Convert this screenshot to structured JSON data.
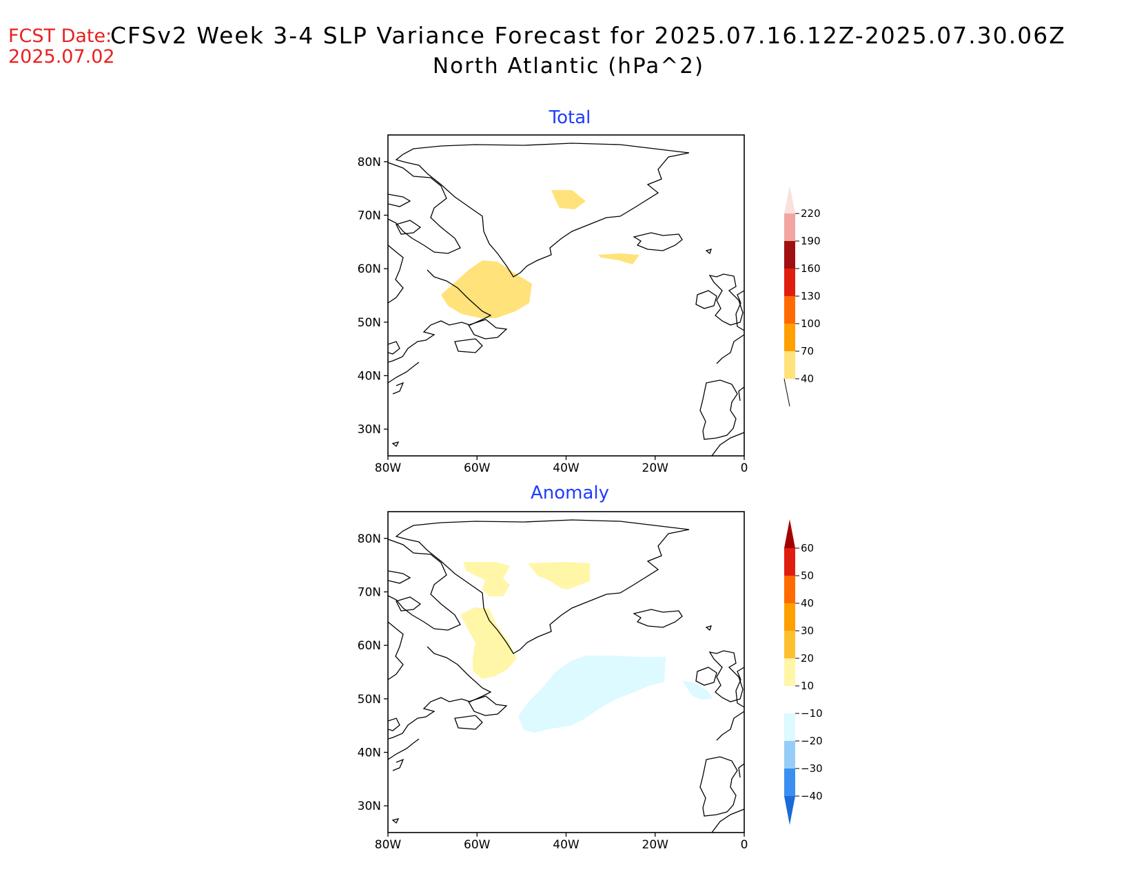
{
  "header": {
    "fcst_label": "FCST Date:",
    "fcst_date": "2025.07.02",
    "title": "CFSv2 Week 3-4 SLP Variance Forecast for 2025.07.16.12Z-2025.07.30.06Z",
    "subtitle": "North Atlantic (hPa^2)"
  },
  "panels": [
    {
      "title": "Total",
      "lat_ticks": [
        "80N",
        "70N",
        "60N",
        "50N",
        "40N",
        "30N"
      ],
      "lon_ticks": [
        "80W",
        "60W",
        "40W",
        "20W",
        "0"
      ],
      "colorbar": {
        "labels": [
          "220",
          "190",
          "160",
          "130",
          "100",
          "70",
          "40"
        ],
        "colors": [
          "#fbe0dc",
          "#f2a5a0",
          "#a01010",
          "#e01e10",
          "#ff6a00",
          "#ffa000",
          "#ffe27a"
        ]
      }
    },
    {
      "title": "Anomaly",
      "lat_ticks": [
        "80N",
        "70N",
        "60N",
        "50N",
        "40N",
        "30N"
      ],
      "lon_ticks": [
        "80W",
        "60W",
        "40W",
        "20W",
        "0"
      ],
      "colorbar": {
        "labels": [
          "60",
          "50",
          "40",
          "30",
          "20",
          "10",
          "-10",
          "-20",
          "-30",
          "-40"
        ],
        "colors": [
          "#a50000",
          "#e01e10",
          "#ff6a00",
          "#ffa000",
          "#ffc030",
          "#fff6a8",
          "#ffffff",
          "#dcfaff",
          "#96ccf8",
          "#3a8ff0",
          "#1a6ad8"
        ]
      }
    }
  ],
  "colors": {
    "title_blue": "#1e3cff",
    "fcst_red": "#e8201f"
  }
}
